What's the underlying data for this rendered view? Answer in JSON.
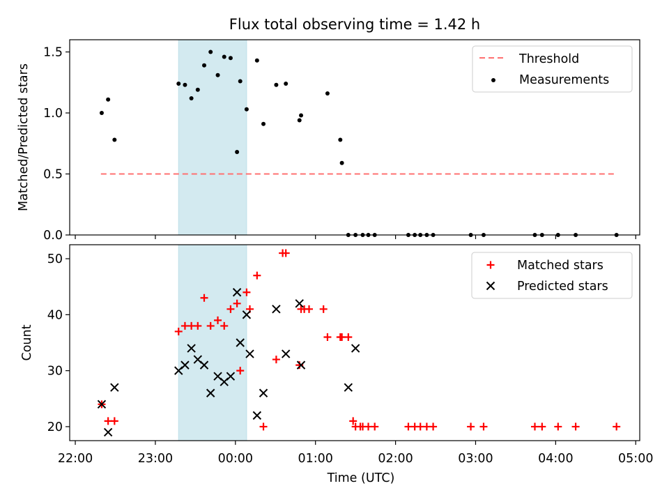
{
  "title": "Flux total observing time = 1.42 h",
  "colors": {
    "span": "#d3eaf0",
    "threshold": "#ff7070",
    "matched": "#ff0000",
    "predicted": "#000000",
    "measurement": "#000000"
  },
  "chart_data": [
    {
      "type": "scatter",
      "ylabel": "Matched/Predicted stars",
      "xlim": [
        21.93,
        29.05
      ],
      "ylim": [
        0,
        1.6
      ],
      "yticks": [
        "0.0",
        "0.5",
        "1.0",
        "1.5"
      ],
      "ytick_values": [
        0,
        0.5,
        1.0,
        1.5
      ],
      "span": [
        23.29,
        24.14
      ],
      "grid": false,
      "legend_position": "upper right",
      "legend": [
        "Threshold",
        "Measurements"
      ],
      "threshold": {
        "y": 0.5,
        "x": [
          22.32,
          28.76
        ],
        "style": "dashed"
      },
      "measurements": {
        "x": [
          22.33,
          22.41,
          22.49,
          23.29,
          23.37,
          23.45,
          23.53,
          23.61,
          23.69,
          23.78,
          23.86,
          23.94,
          24.02,
          24.06,
          24.14,
          24.27,
          24.35,
          24.51,
          24.63,
          24.8,
          24.82,
          25.15,
          25.31,
          25.33,
          25.41,
          25.5,
          25.59,
          25.66,
          25.74,
          26.16,
          26.24,
          26.31,
          26.39,
          26.47,
          26.94,
          27.1,
          27.74,
          27.83,
          28.03,
          28.25,
          28.76
        ],
        "y": [
          1.0,
          1.11,
          0.78,
          1.24,
          1.23,
          1.12,
          1.19,
          1.39,
          1.5,
          1.31,
          1.46,
          1.45,
          0.68,
          1.26,
          1.03,
          1.43,
          0.91,
          1.23,
          1.24,
          0.94,
          0.98,
          1.16,
          0.78,
          0.59,
          0.0,
          0.0,
          0.0,
          0.0,
          0.0,
          0.0,
          0.0,
          0.0,
          0.0,
          0.0,
          0.0,
          0.0,
          0.0,
          0.0,
          0.0,
          0.0,
          0.0
        ]
      }
    },
    {
      "type": "scatter",
      "xlabel": "Time (UTC)",
      "ylabel": "Count",
      "xlim": [
        21.93,
        29.05
      ],
      "ylim": [
        17.5,
        52.5
      ],
      "xticks": [
        "22:00",
        "23:00",
        "00:00",
        "01:00",
        "02:00",
        "03:00",
        "04:00",
        "05:00"
      ],
      "xtick_values": [
        22,
        23,
        24,
        25,
        26,
        27,
        28,
        29
      ],
      "yticks": [
        "20",
        "30",
        "40",
        "50"
      ],
      "ytick_values": [
        20,
        30,
        40,
        50
      ],
      "span": [
        23.29,
        24.14
      ],
      "grid": false,
      "legend_position": "upper right",
      "series": [
        {
          "name": "Matched stars",
          "marker": "+",
          "x": [
            22.33,
            22.41,
            22.49,
            23.29,
            23.37,
            23.45,
            23.53,
            23.61,
            23.69,
            23.78,
            23.86,
            23.94,
            24.02,
            24.06,
            24.14,
            24.18,
            24.27,
            24.35,
            24.51,
            24.59,
            24.63,
            24.8,
            24.82,
            24.86,
            24.92,
            25.1,
            25.15,
            25.31,
            25.33,
            25.41,
            25.47,
            25.5,
            25.56,
            25.59,
            25.66,
            25.74,
            26.16,
            26.24,
            26.31,
            26.39,
            26.47,
            26.94,
            27.1,
            27.74,
            27.83,
            28.03,
            28.25,
            28.76
          ],
          "y": [
            24,
            21,
            21,
            37,
            38,
            38,
            38,
            43,
            38,
            39,
            38,
            41,
            42,
            30,
            44,
            41,
            47,
            20,
            32,
            51,
            51,
            31,
            41,
            41,
            41,
            41,
            36,
            36,
            36,
            36,
            21,
            20,
            20,
            20,
            20,
            20,
            20,
            20,
            20,
            20,
            20,
            20,
            20,
            20,
            20,
            20,
            20,
            20
          ]
        },
        {
          "name": "Predicted stars",
          "marker": "x",
          "x": [
            22.33,
            22.41,
            22.49,
            23.29,
            23.37,
            23.45,
            23.53,
            23.61,
            23.69,
            23.78,
            23.86,
            23.94,
            24.02,
            24.06,
            24.14,
            24.18,
            24.27,
            24.35,
            24.51,
            24.63,
            24.8,
            24.82,
            25.41,
            25.5
          ],
          "y": [
            24,
            19,
            27,
            30,
            31,
            34,
            32,
            31,
            26,
            29,
            28,
            29,
            44,
            35,
            40,
            33,
            22,
            26,
            41,
            33,
            42,
            31,
            27,
            34
          ]
        }
      ]
    }
  ]
}
